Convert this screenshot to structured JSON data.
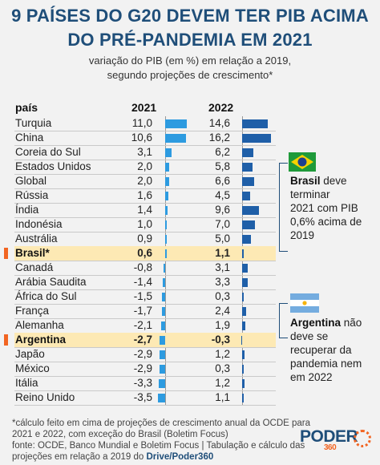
{
  "title": {
    "line1": "9 PAÍSES DO G20 DEVEM TER PIB ACIMA",
    "line2": "DO PRÉ-PANDEMIA  EM 2021"
  },
  "subtitle": {
    "line1": "variação do PIB (em %) em relação a 2019,",
    "line2": "segundo projeções de crescimento*"
  },
  "header": {
    "country": "país",
    "y2021": "2021",
    "y2022": "2022"
  },
  "chart_data": {
    "type": "bar",
    "categories": [
      "Turquia",
      "China",
      "Coreia do Sul",
      "Estados Unidos",
      "Global",
      "Rússia",
      "Índia",
      "Indonésia",
      "Austrália",
      "Brasil*",
      "Canadá",
      "Arábia Saudita",
      "África do Sul",
      "França",
      "Alemanha",
      "Argentina",
      "Japão",
      "México",
      "Itália",
      "Reino Unido"
    ],
    "series": [
      {
        "name": "2021",
        "values": [
          11.0,
          10.6,
          3.1,
          2.0,
          2.0,
          1.6,
          1.4,
          1.0,
          0.9,
          0.6,
          -0.8,
          -1.4,
          -1.5,
          -1.7,
          -2.1,
          -2.7,
          -2.9,
          -2.9,
          -3.3,
          -3.5
        ],
        "labels": [
          "11,0",
          "10,6",
          "3,1",
          "2,0",
          "2,0",
          "1,6",
          "1,4",
          "1,0",
          "0,9",
          "0,6",
          "-0,8",
          "-1,4",
          "-1,5",
          "-1,7",
          "-2,1",
          "-2,7",
          "-2,9",
          "-2,9",
          "-3,3",
          "-3,5"
        ]
      },
      {
        "name": "2022",
        "values": [
          14.6,
          16.2,
          6.2,
          5.8,
          6.6,
          4.5,
          9.6,
          7.0,
          5.0,
          1.1,
          3.1,
          3.3,
          0.3,
          2.4,
          1.9,
          -0.3,
          1.2,
          0.3,
          1.2,
          1.1
        ],
        "labels": [
          "14,6",
          "16,2",
          "6,2",
          "5,8",
          "6,6",
          "4,5",
          "9,6",
          "7,0",
          "5,0",
          "1,1",
          "3,1",
          "3,3",
          "0,3",
          "2,4",
          "1,9",
          "-0,3",
          "1,2",
          "0,3",
          "1,2",
          "1,1"
        ]
      }
    ],
    "highlighted": [
      "Brasil*",
      "Argentina"
    ],
    "colors": {
      "bar2021": "#2d9be0",
      "bar2022": "#1f5fa8",
      "highlight": "#fde9b4",
      "marker": "#f26522",
      "title": "#1f4e79"
    }
  },
  "notes": {
    "brasil": {
      "name": "Brasil",
      "rest1": " deve",
      "line2": "terminar",
      "line3": "2021 com PIB",
      "line4": "0,6% acima de",
      "line5": "2019"
    },
    "argentina": {
      "name": "Argentina",
      "rest1": " não",
      "line2": "deve se",
      "line3": "recuperar da",
      "line4": "pandemia nem",
      "line5": "em 2022"
    }
  },
  "footnote": {
    "line1": "*cálculo feito em cima de projeções de crescimento anual da OCDE para",
    "line2": "2021 e 2022, com exceção do Brasil (Boletim Focus)",
    "line3": "fonte: OCDE, Banco Mundial e Boletim Focus | Tabulação e cálculo das",
    "line4a": "projeções em relação a 2019 do ",
    "line4b": "Drive/Poder360"
  },
  "logo": {
    "text": "PODER",
    "num": "360"
  }
}
